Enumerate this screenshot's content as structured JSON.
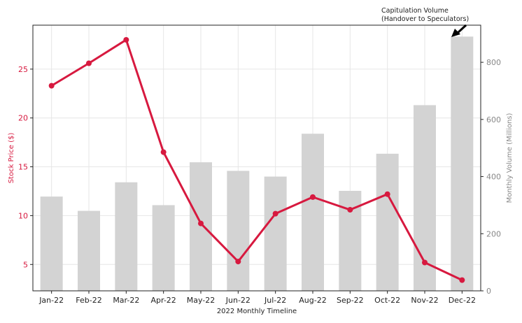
{
  "chart_data": {
    "type": "bar+line",
    "categories": [
      "Jan-22",
      "Feb-22",
      "Mar-22",
      "Apr-22",
      "May-22",
      "Jun-22",
      "Jul-22",
      "Aug-22",
      "Sep-22",
      "Oct-22",
      "Nov-22",
      "Dec-22"
    ],
    "xlabel": "2022 Monthly Timeline",
    "grid": true,
    "series": [
      {
        "name": "Stock Price ($)",
        "kind": "line",
        "axis": "left",
        "color": "#d7193f",
        "values": [
          23.3,
          25.6,
          28.0,
          16.5,
          9.2,
          5.3,
          10.2,
          11.9,
          10.6,
          12.2,
          5.2,
          3.4
        ]
      },
      {
        "name": "Monthly Volume (Millions)",
        "kind": "bar",
        "axis": "right",
        "color": "#d3d3d3",
        "values": [
          330,
          280,
          380,
          300,
          450,
          420,
          400,
          550,
          350,
          480,
          650,
          890
        ]
      }
    ],
    "y_left": {
      "label": "Stock Price ($)",
      "color": "#d7193f",
      "range": [
        2.3,
        29.5
      ],
      "ticks": [
        5,
        10,
        15,
        20,
        25
      ]
    },
    "y_right": {
      "label": "Monthly Volume (Millions)",
      "color": "#888888",
      "range": [
        0,
        930
      ],
      "ticks": [
        0,
        200,
        400,
        600,
        800
      ]
    },
    "annotation": {
      "lines": [
        "Capitulation Volume",
        "(Handover to Speculators)"
      ],
      "target_category": "Dec-22",
      "target_value": 890
    }
  }
}
